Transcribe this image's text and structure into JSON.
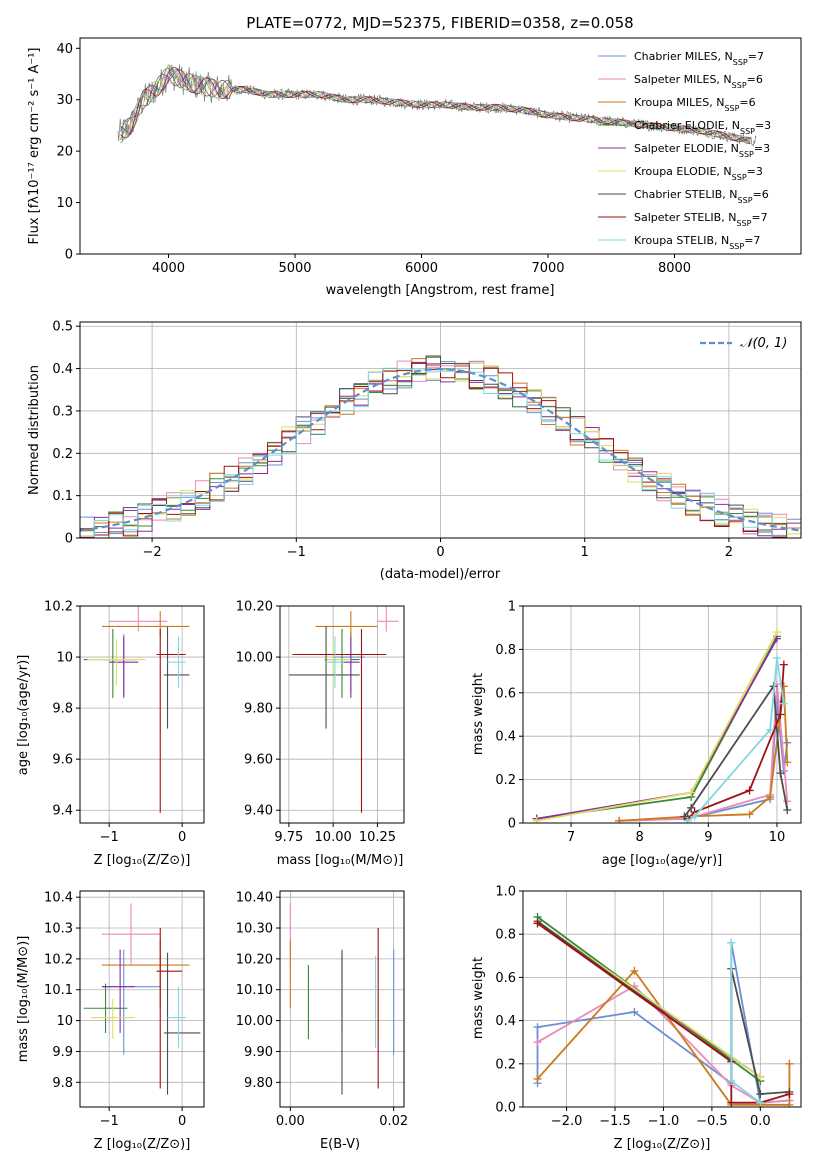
{
  "colors": [
    "#6a8fd8",
    "#e98ab8",
    "#cc7a1a",
    "#3a8a3a",
    "#8a2ea0",
    "#dede60",
    "#4d4d4d",
    "#a01010",
    "#80d8e0"
  ],
  "chart_data": [
    {
      "id": "spectrum",
      "type": "line",
      "title": "PLATE=0772, MJD=52375, FIBERID=0358, z=0.058",
      "xlabel": "wavelength [Angstrom, rest frame]",
      "ylabel": "Flux [fλ10⁻¹⁷ erg cm⁻² s⁻¹ A⁻¹]",
      "xlim": [
        3300,
        9000
      ],
      "ylim": [
        0,
        42
      ],
      "xticks": [
        4000,
        5000,
        6000,
        7000,
        8000
      ],
      "yticks": [
        0,
        10,
        20,
        30,
        40
      ],
      "legend_position": "top-right",
      "legend": [
        "Chabrier MILES, N_SSP=7",
        "Salpeter MILES, N_SSP=6",
        "Kroupa MILES, N_SSP=6",
        "Chabrier ELODIE, N_SSP=3",
        "Salpeter ELODIE, N_SSP=3",
        "Kroupa ELODIE, N_SSP=3",
        "Chabrier STELIB, N_SSP=6",
        "Salpeter STELIB, N_SSP=7",
        "Kroupa STELIB, N_SSP=7"
      ],
      "continuum": [
        [
          3600,
          23
        ],
        [
          3700,
          25
        ],
        [
          3800,
          30
        ],
        [
          3900,
          32
        ],
        [
          4000,
          35
        ],
        [
          4200,
          33
        ],
        [
          4400,
          32
        ],
        [
          4600,
          32
        ],
        [
          4800,
          31
        ],
        [
          5000,
          31
        ],
        [
          5200,
          31
        ],
        [
          5400,
          30
        ],
        [
          5600,
          30
        ],
        [
          5800,
          29.5
        ],
        [
          6000,
          29
        ],
        [
          6200,
          29
        ],
        [
          6400,
          28.5
        ],
        [
          6600,
          28.5
        ],
        [
          6800,
          28
        ],
        [
          7000,
          27
        ],
        [
          7200,
          26.5
        ],
        [
          7400,
          26
        ],
        [
          7600,
          25.5
        ],
        [
          7800,
          25
        ],
        [
          8000,
          24.5
        ],
        [
          8200,
          24
        ],
        [
          8400,
          23
        ],
        [
          8600,
          22
        ]
      ]
    },
    {
      "id": "residuals",
      "type": "line",
      "xlabel": "(data-model)/error",
      "ylabel": "Normed distribution",
      "xlim": [
        -2.5,
        2.5
      ],
      "ylim": [
        0,
        0.51
      ],
      "xticks": [
        -2,
        -1,
        0,
        1,
        2
      ],
      "yticks": [
        0.0,
        0.1,
        0.2,
        0.3,
        0.4,
        0.5
      ],
      "legend": [
        "𝒩(0, 1)"
      ],
      "legend_position": "top-right",
      "gaussian": {
        "mean": 0,
        "sigma": 1
      }
    },
    {
      "id": "age-vs-Z",
      "type": "scatter",
      "xlabel": "Z [log₁₀(Z/Z⊙)]",
      "ylabel": "age  [log₁₀(age/yr)]",
      "xlim": [
        -1.4,
        0.3
      ],
      "ylim": [
        9.35,
        10.2
      ],
      "xticks": [
        -1,
        0
      ],
      "yticks": [
        9.4,
        9.6,
        9.8,
        10.0,
        10.2
      ],
      "points": [
        {
          "x": -0.8,
          "y": 9.99,
          "xerr": [
            0.3,
            0.2
          ],
          "yerr": [
            0.14,
            0.1
          ]
        },
        {
          "x": -0.6,
          "y": 10.14,
          "xerr": [
            0.4,
            0.4
          ],
          "yerr": [
            0.04,
            0.06
          ]
        },
        {
          "x": -0.3,
          "y": 10.12,
          "xerr": [
            0.8,
            0.4
          ],
          "yerr": [
            0.04,
            0.06
          ]
        },
        {
          "x": -0.95,
          "y": 9.99,
          "xerr": [
            0.4,
            0.3
          ],
          "yerr": [
            0.15,
            0.12
          ]
        },
        {
          "x": -0.8,
          "y": 9.98,
          "xerr": [
            0.2,
            0.2
          ],
          "yerr": [
            0.14,
            0.1
          ]
        },
        {
          "x": -0.9,
          "y": 9.99,
          "xerr": [
            0.4,
            0.4
          ],
          "yerr": [
            0.1,
            0.08
          ]
        },
        {
          "x": -0.2,
          "y": 9.93,
          "xerr": [
            0.05,
            0.3
          ],
          "yerr": [
            0.21,
            0.19
          ]
        },
        {
          "x": -0.3,
          "y": 10.01,
          "xerr": [
            0.05,
            0.35
          ],
          "yerr": [
            0.62,
            0.1
          ]
        },
        {
          "x": -0.05,
          "y": 9.98,
          "xerr": [
            0.15,
            0.1
          ],
          "yerr": [
            0.1,
            0.1
          ]
        }
      ]
    },
    {
      "id": "age-vs-mass",
      "type": "scatter",
      "xlabel": "mass [log₁₀(M/M⊙)]",
      "ylabel": "",
      "xlim": [
        9.7,
        10.4
      ],
      "ylim": [
        9.35,
        10.2
      ],
      "xticks": [
        9.75,
        10.0,
        10.25
      ],
      "yticks": [
        9.4,
        9.6,
        9.8,
        10.0,
        10.2
      ],
      "points": [
        {
          "x": 10.1,
          "y": 10.0,
          "xerr": [
            0.1,
            0.08
          ],
          "yerr": [
            0.14,
            0.1
          ]
        },
        {
          "x": 10.3,
          "y": 10.14,
          "xerr": [
            0.05,
            0.07
          ],
          "yerr": [
            0.04,
            0.06
          ]
        },
        {
          "x": 10.1,
          "y": 10.12,
          "xerr": [
            0.2,
            0.15
          ],
          "yerr": [
            0.04,
            0.06
          ]
        },
        {
          "x": 10.05,
          "y": 9.99,
          "xerr": [
            0.1,
            0.1
          ],
          "yerr": [
            0.15,
            0.12
          ]
        },
        {
          "x": 10.1,
          "y": 9.98,
          "xerr": [
            0.05,
            0.05
          ],
          "yerr": [
            0.14,
            0.1
          ]
        },
        {
          "x": 10.0,
          "y": 9.99,
          "xerr": [
            0.05,
            0.1
          ],
          "yerr": [
            0.1,
            0.08
          ]
        },
        {
          "x": 9.96,
          "y": 9.93,
          "xerr": [
            0.21,
            0.19
          ],
          "yerr": [
            0.21,
            0.19
          ]
        },
        {
          "x": 10.16,
          "y": 10.01,
          "xerr": [
            0.39,
            0.14
          ],
          "yerr": [
            0.62,
            0.1
          ]
        },
        {
          "x": 10.01,
          "y": 9.98,
          "xerr": [
            0.05,
            0.05
          ],
          "yerr": [
            0.1,
            0.1
          ]
        }
      ]
    },
    {
      "id": "massweight-vs-age",
      "type": "line",
      "xlabel": "age  [log₁₀(age/yr)]",
      "ylabel": "mass weight",
      "xlim": [
        6.3,
        10.35
      ],
      "ylim": [
        0,
        1.0
      ],
      "xticks": [
        7,
        8,
        9,
        10
      ],
      "yticks": [
        0.0,
        0.2,
        0.4,
        0.6,
        0.8,
        1.0
      ],
      "series": [
        {
          "x": [
            7.7,
            8.7,
            9.9,
            10.0,
            10.1,
            10.15
          ],
          "y": [
            0.01,
            0.02,
            0.11,
            0.56,
            0.24,
            0.37
          ]
        },
        {
          "x": [
            7.7,
            8.7,
            9.9,
            10.0,
            10.15
          ],
          "y": [
            0.01,
            0.02,
            0.13,
            0.64,
            0.1
          ]
        },
        {
          "x": [
            7.7,
            8.7,
            9.6,
            9.9,
            10.1,
            10.15
          ],
          "y": [
            0.01,
            0.03,
            0.04,
            0.12,
            0.63,
            0.28
          ]
        },
        {
          "x": [
            6.5,
            8.75,
            10.0
          ],
          "y": [
            0.02,
            0.12,
            0.86
          ]
        },
        {
          "x": [
            6.5,
            8.75,
            10.0
          ],
          "y": [
            0.02,
            0.14,
            0.85
          ]
        },
        {
          "x": [
            6.5,
            8.75,
            10.0
          ],
          "y": [
            0.01,
            0.14,
            0.88
          ]
        },
        {
          "x": [
            8.65,
            8.75,
            9.95,
            10.05,
            10.15
          ],
          "y": [
            0.03,
            0.07,
            0.63,
            0.23,
            0.06
          ]
        },
        {
          "x": [
            8.7,
            8.8,
            9.6,
            10.05,
            10.1
          ],
          "y": [
            0.02,
            0.05,
            0.15,
            0.5,
            0.73
          ]
        },
        {
          "x": [
            8.7,
            8.8,
            9.9,
            10.0,
            10.1
          ],
          "y": [
            0.01,
            0.03,
            0.43,
            0.76,
            0.55
          ]
        }
      ]
    },
    {
      "id": "mass-vs-Z",
      "type": "scatter",
      "xlabel": "Z [log₁₀(Z/Z⊙)]",
      "ylabel": "mass [log₁₀(M/M⊙)]",
      "xlim": [
        -1.4,
        0.3
      ],
      "ylim": [
        9.72,
        10.42
      ],
      "xticks": [
        -1,
        0
      ],
      "yticks": [
        9.8,
        9.9,
        10.0,
        10.1,
        10.2,
        10.3,
        10.4
      ],
      "points": [
        {
          "x": -0.8,
          "y": 10.11,
          "xerr": [
            0.3,
            0.5
          ],
          "yerr": [
            0.22,
            0.12
          ]
        },
        {
          "x": -0.7,
          "y": 10.28,
          "xerr": [
            0.4,
            0.4
          ],
          "yerr": [
            0.1,
            0.1
          ]
        },
        {
          "x": -0.3,
          "y": 10.18,
          "xerr": [
            0.8,
            0.4
          ],
          "yerr": [
            0.14,
            0.08
          ]
        },
        {
          "x": -1.05,
          "y": 10.04,
          "xerr": [
            0.3,
            0.3
          ],
          "yerr": [
            0.08,
            0.08
          ]
        },
        {
          "x": -0.85,
          "y": 10.11,
          "xerr": [
            0.25,
            0.2
          ],
          "yerr": [
            0.15,
            0.12
          ]
        },
        {
          "x": -0.95,
          "y": 10.01,
          "xerr": [
            0.3,
            0.3
          ],
          "yerr": [
            0.07,
            0.06
          ]
        },
        {
          "x": -0.2,
          "y": 9.96,
          "xerr": [
            0.05,
            0.45
          ],
          "yerr": [
            0.2,
            0.26
          ]
        },
        {
          "x": -0.3,
          "y": 10.16,
          "xerr": [
            0.05,
            0.3
          ],
          "yerr": [
            0.38,
            0.14
          ]
        },
        {
          "x": -0.05,
          "y": 10.01,
          "xerr": [
            0.15,
            0.1
          ],
          "yerr": [
            0.1,
            0.1
          ]
        }
      ]
    },
    {
      "id": "mass-vs-EBV",
      "type": "scatter",
      "xlabel": "E(B-V)",
      "ylabel": "",
      "xlim": [
        -0.002,
        0.022
      ],
      "ylim": [
        9.72,
        10.42
      ],
      "xticks": [
        0.0,
        0.02
      ],
      "yticks": [
        9.8,
        9.9,
        10.0,
        10.1,
        10.2,
        10.3,
        10.4
      ],
      "points": [
        {
          "x": 0.02,
          "y": 10.11,
          "xerr": [
            0,
            0
          ],
          "yerr": [
            0.22,
            0.12
          ]
        },
        {
          "x": 0.0,
          "y": 10.28,
          "xerr": [
            0,
            0
          ],
          "yerr": [
            0.1,
            0.1
          ]
        },
        {
          "x": 0.0,
          "y": 10.18,
          "xerr": [
            0,
            0
          ],
          "yerr": [
            0.14,
            0.08
          ]
        },
        {
          "x": 0.0035,
          "y": 10.04,
          "xerr": [
            0,
            0
          ],
          "yerr": [
            0.1,
            0.14
          ]
        },
        {
          "x": 0.01,
          "y": 10.11,
          "xerr": [
            0,
            0
          ],
          "yerr": [
            0.15,
            0.12
          ]
        },
        {
          "x": 0.017,
          "y": 10.01,
          "xerr": [
            0,
            0
          ],
          "yerr": [
            0.07,
            0.06
          ]
        },
        {
          "x": 0.01,
          "y": 9.96,
          "xerr": [
            0,
            0
          ],
          "yerr": [
            0.2,
            0.26
          ]
        },
        {
          "x": 0.017,
          "y": 10.16,
          "xerr": [
            0,
            0
          ],
          "yerr": [
            0.38,
            0.14
          ]
        },
        {
          "x": 0.0165,
          "y": 10.01,
          "xerr": [
            0,
            0
          ],
          "yerr": [
            0.1,
            0.2
          ]
        }
      ]
    },
    {
      "id": "massweight-vs-Z",
      "type": "line",
      "xlabel": "Z [log₁₀(Z/Z⊙)]",
      "ylabel": "mass weight",
      "xlim": [
        -2.45,
        0.42
      ],
      "ylim": [
        0,
        1.0
      ],
      "xticks": [
        -2.0,
        -1.5,
        -1.0,
        -0.5,
        0.0
      ],
      "yticks": [
        0.0,
        0.2,
        0.4,
        0.6,
        0.8,
        1.0
      ],
      "series": [
        {
          "x": [
            -2.3,
            -2.3,
            -1.3,
            -0.3,
            -0.3,
            0.0,
            0.3
          ],
          "y": [
            0.11,
            0.37,
            0.44,
            0.11,
            0.76,
            0.02,
            0.03
          ]
        },
        {
          "x": [
            -2.3,
            -1.3,
            -0.3,
            0.0,
            0.3
          ],
          "y": [
            0.3,
            0.56,
            0.1,
            0.02,
            0.03
          ]
        },
        {
          "x": [
            -2.3,
            -1.3,
            -0.3,
            0.0,
            0.3,
            0.3
          ],
          "y": [
            0.13,
            0.63,
            0.01,
            0.01,
            0.01,
            0.2
          ]
        },
        {
          "x": [
            -2.3,
            0.0
          ],
          "y": [
            0.88,
            0.12
          ]
        },
        {
          "x": [
            -2.3,
            0.0
          ],
          "y": [
            0.85,
            0.14
          ]
        },
        {
          "x": [
            -2.3,
            0.0
          ],
          "y": [
            0.86,
            0.14
          ]
        },
        {
          "x": [
            -2.3,
            -0.3,
            -0.3,
            0.0,
            0.3
          ],
          "y": [
            0.86,
            0.21,
            0.64,
            0.06,
            0.07
          ]
        },
        {
          "x": [
            -2.3,
            -0.3,
            -0.3,
            0.0,
            0.3
          ],
          "y": [
            0.85,
            0.21,
            0.02,
            0.02,
            0.06
          ]
        },
        {
          "x": [
            -0.3,
            -0.3,
            0.0
          ],
          "y": [
            0.76,
            0.12,
            0.02
          ]
        }
      ]
    }
  ]
}
